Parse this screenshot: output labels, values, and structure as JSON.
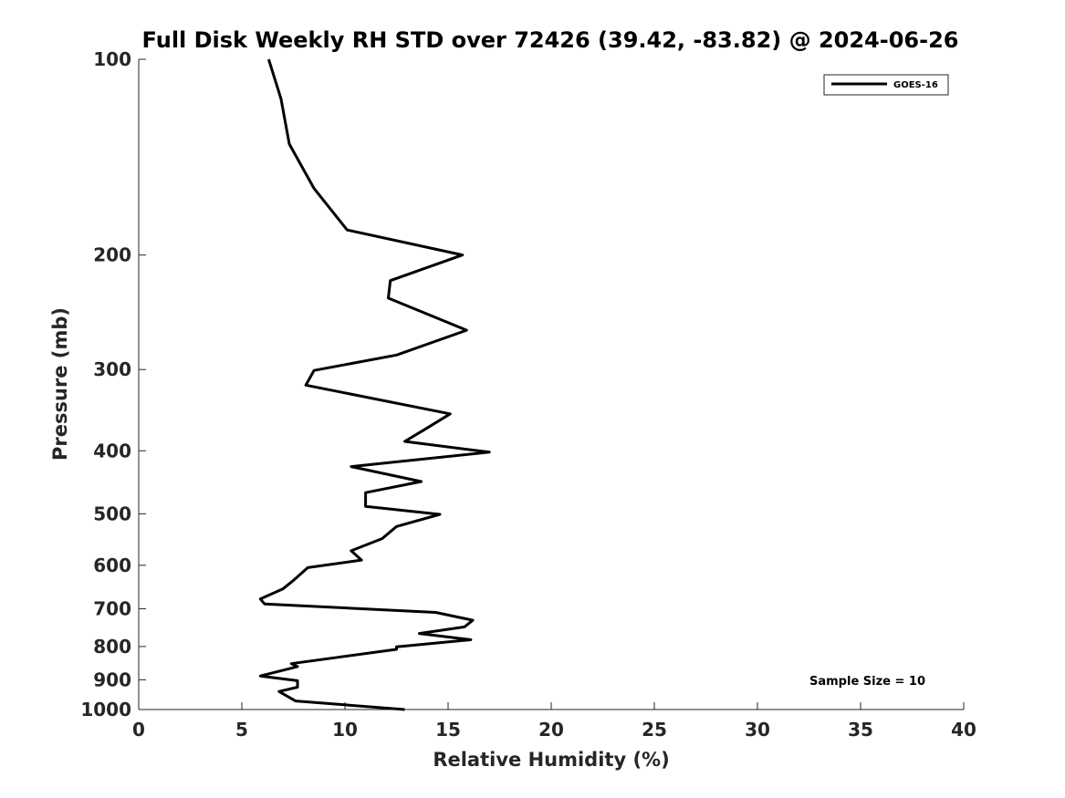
{
  "chart_data": {
    "type": "line",
    "title": "Full Disk Weekly RH STD over 72426 (39.42, -83.82) @ 2024-06-26",
    "xlabel": "Relative Humidity (%)",
    "ylabel": "Pressure (mb)",
    "xlim": [
      0,
      40
    ],
    "ylim": [
      100,
      1000
    ],
    "y_scale": "log",
    "y_reversed": true,
    "x_ticks": [
      "0",
      "5",
      "10",
      "15",
      "20",
      "25",
      "30",
      "35",
      "40"
    ],
    "y_ticks": [
      "100",
      "200",
      "300",
      "400",
      "500",
      "600",
      "700",
      "800",
      "900",
      "1000"
    ],
    "grid": false,
    "legend_position": "top-right",
    "annotation": "Sample Size = 10",
    "colors": {
      "line": "#000000",
      "text": "#262626"
    },
    "series": [
      {
        "name": "GOES-16",
        "x": [
          6.3,
          6.9,
          7.3,
          8.5,
          10.1,
          15.7,
          12.2,
          12.1,
          15.9,
          12.5,
          8.5,
          8.1,
          15.1,
          13.8,
          12.9,
          17.0,
          10.3,
          13.7,
          11.0,
          11.0,
          14.6,
          12.5,
          11.8,
          10.3,
          10.8,
          8.2,
          7.5,
          7.0,
          5.9,
          6.1,
          14.4,
          16.2,
          15.8,
          13.6,
          16.1,
          12.5,
          12.5,
          7.4,
          7.7,
          5.9,
          7.7,
          7.7,
          6.8,
          7.6,
          12.9
        ],
        "y": [
          100,
          115,
          135,
          158,
          183,
          200,
          219,
          233,
          261,
          285,
          301,
          317,
          351,
          372,
          387,
          402,
          423,
          446,
          464,
          487,
          501,
          523,
          546,
          570,
          589,
          605,
          633,
          652,
          676,
          688,
          709,
          729,
          746,
          764,
          781,
          801,
          808,
          850,
          859,
          888,
          903,
          924,
          938,
          970,
          1000
        ]
      }
    ]
  }
}
